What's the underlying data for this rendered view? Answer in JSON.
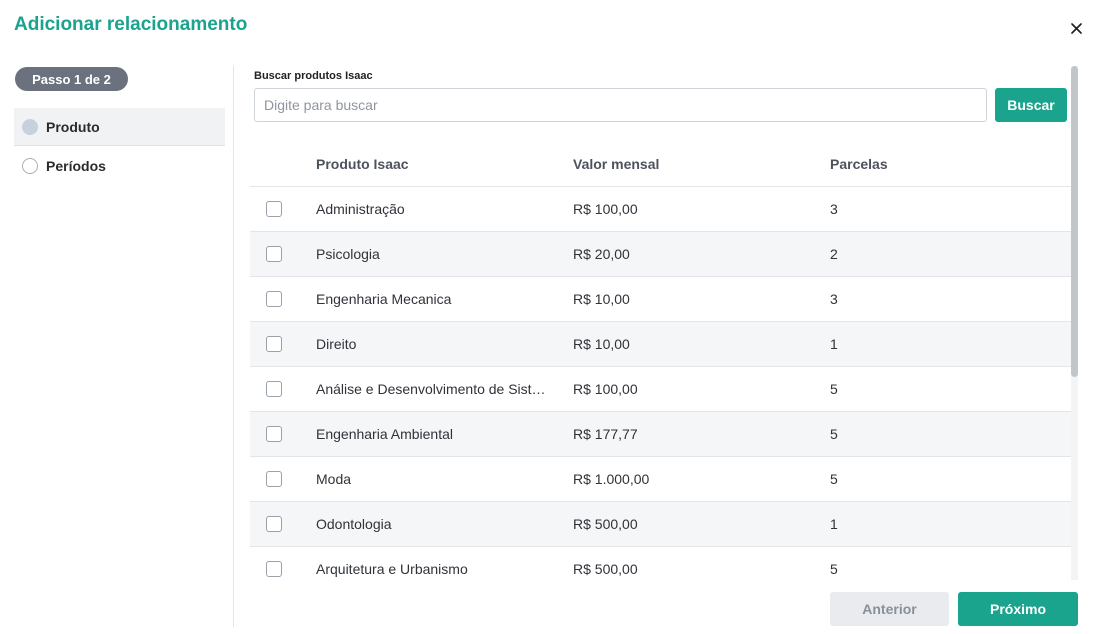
{
  "modal": {
    "title": "Adicionar relacionamento"
  },
  "stepper": {
    "badge": "Passo 1 de 2",
    "steps": [
      {
        "label": "Produto",
        "state": "active"
      },
      {
        "label": "Períodos",
        "state": "pending"
      }
    ]
  },
  "search": {
    "label": "Buscar produtos Isaac",
    "placeholder": "Digite para buscar",
    "value": "",
    "button_label": "Buscar"
  },
  "table": {
    "columns": [
      "Produto Isaac",
      "Valor mensal",
      "Parcelas"
    ],
    "rows": [
      {
        "name": "Administração",
        "value": "R$ 100,00",
        "installments": "3",
        "checked": false
      },
      {
        "name": "Psicologia",
        "value": "R$ 20,00",
        "installments": "2",
        "checked": false
      },
      {
        "name": "Engenharia Mecanica",
        "value": "R$ 10,00",
        "installments": "3",
        "checked": false
      },
      {
        "name": "Direito",
        "value": "R$ 10,00",
        "installments": "1",
        "checked": false
      },
      {
        "name": "Análise e Desenvolvimento de Sist…",
        "value": "R$ 100,00",
        "installments": "5",
        "checked": false
      },
      {
        "name": "Engenharia Ambiental",
        "value": "R$ 177,77",
        "installments": "5",
        "checked": false
      },
      {
        "name": "Moda",
        "value": "R$ 1.000,00",
        "installments": "5",
        "checked": false
      },
      {
        "name": "Odontologia",
        "value": "R$ 500,00",
        "installments": "1",
        "checked": false
      },
      {
        "name": "Arquitetura e Urbanismo",
        "value": "R$ 500,00",
        "installments": "5",
        "checked": false
      }
    ]
  },
  "footer": {
    "prev_label": "Anterior",
    "next_label": "Próximo"
  },
  "colors": {
    "accent": "#1aa38d",
    "badge": "#6c727d",
    "disabled": "#e9ebee"
  },
  "icons": {
    "close": "close-icon",
    "checkbox": "checkbox-unchecked"
  }
}
